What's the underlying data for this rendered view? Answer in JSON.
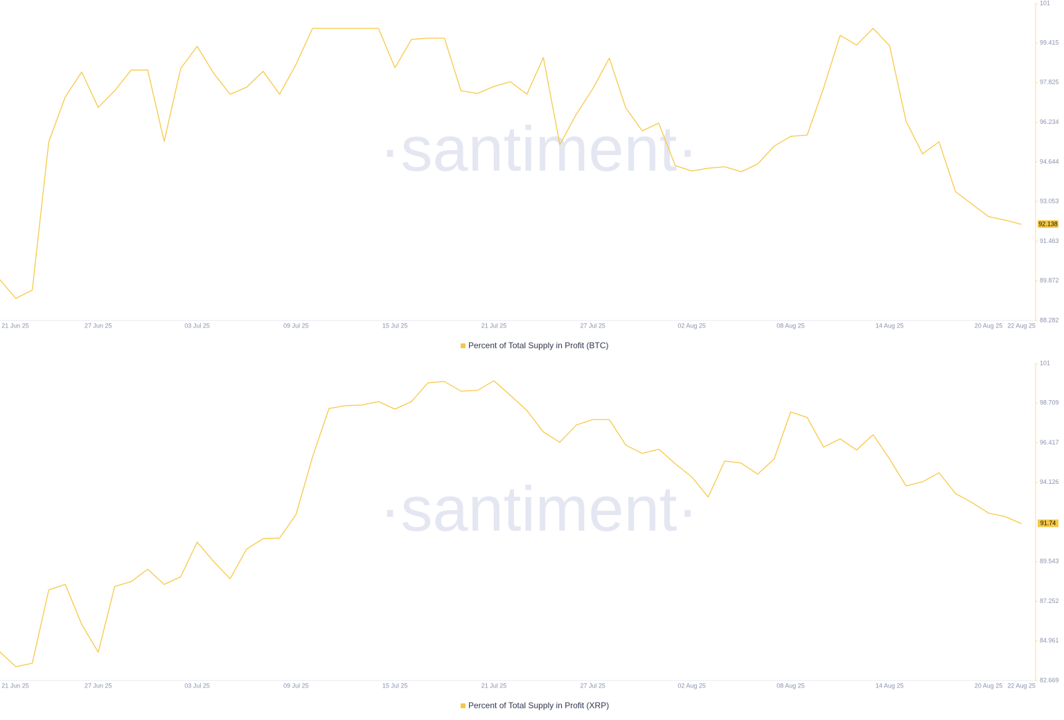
{
  "chart_data": [
    {
      "type": "line",
      "watermark": "·santiment·",
      "categories": [
        "21 Jun 25",
        null,
        null,
        null,
        null,
        null,
        "27 Jun 25",
        null,
        null,
        null,
        null,
        null,
        "03 Jul 25",
        null,
        null,
        null,
        null,
        null,
        "09 Jul 25",
        null,
        null,
        null,
        null,
        null,
        "15 Jul 25",
        null,
        null,
        null,
        null,
        null,
        "21 Jul 25",
        null,
        null,
        null,
        null,
        null,
        "27 Jul 25",
        null,
        null,
        null,
        null,
        null,
        "02 Aug 25",
        null,
        null,
        null,
        null,
        null,
        "08 Aug 25",
        null,
        null,
        null,
        null,
        null,
        "14 Aug 25",
        null,
        null,
        null,
        null,
        null,
        "20 Aug 25",
        null,
        "22 Aug 25"
      ],
      "series": [
        {
          "name": "Percent of Total Supply in Profit (BTC)",
          "color": "#f7c845",
          "values": [
            89.95,
            89.17,
            89.5,
            95.45,
            97.25,
            98.25,
            96.83,
            97.5,
            98.33,
            98.33,
            95.47,
            98.39,
            99.28,
            98.2,
            97.36,
            97.64,
            98.28,
            97.36,
            98.56,
            100.0,
            100.0,
            100.0,
            100.0,
            100.0,
            98.42,
            99.56,
            99.61,
            99.61,
            97.5,
            97.39,
            97.67,
            97.86,
            97.36,
            98.83,
            95.34,
            96.56,
            97.58,
            98.81,
            96.81,
            95.89,
            96.2,
            94.5,
            94.28,
            94.39,
            94.45,
            94.25,
            94.56,
            95.28,
            95.67,
            95.72,
            97.61,
            99.72,
            99.33,
            100.0,
            99.31,
            96.28,
            94.97,
            95.45,
            93.45,
            92.95,
            92.45,
            92.31,
            92.138
          ]
        }
      ],
      "ylim": [
        88.282,
        101
      ],
      "yticks": [
        88.282,
        89.872,
        91.463,
        93.053,
        94.644,
        96.234,
        97.825,
        99.415,
        101
      ],
      "legend": "bottom"
    },
    {
      "type": "line",
      "watermark": "·santiment·",
      "categories": [
        "21 Jun 25",
        null,
        null,
        null,
        null,
        null,
        "27 Jun 25",
        null,
        null,
        null,
        null,
        null,
        "03 Jul 25",
        null,
        null,
        null,
        null,
        null,
        "09 Jul 25",
        null,
        null,
        null,
        null,
        null,
        "15 Jul 25",
        null,
        null,
        null,
        null,
        null,
        "21 Jul 25",
        null,
        null,
        null,
        null,
        null,
        "27 Jul 25",
        null,
        null,
        null,
        null,
        null,
        "02 Aug 25",
        null,
        null,
        null,
        null,
        null,
        "08 Aug 25",
        null,
        null,
        null,
        null,
        null,
        "14 Aug 25",
        null,
        null,
        null,
        null,
        null,
        "20 Aug 25",
        null,
        "22 Aug 25"
      ],
      "series": [
        {
          "name": "Percent of Total Supply in Profit (XRP)",
          "color": "#f7c845",
          "values": [
            84.35,
            83.47,
            83.67,
            87.91,
            88.23,
            85.91,
            84.31,
            88.11,
            88.39,
            89.11,
            88.23,
            88.67,
            90.67,
            89.55,
            88.55,
            90.27,
            90.87,
            90.91,
            92.27,
            95.6,
            98.4,
            98.56,
            98.6,
            98.8,
            98.36,
            98.8,
            99.88,
            99.96,
            99.4,
            99.44,
            100.0,
            99.16,
            98.28,
            97.04,
            96.44,
            97.44,
            97.76,
            97.76,
            96.28,
            95.8,
            96.04,
            95.2,
            94.44,
            93.28,
            95.36,
            95.24,
            94.6,
            95.48,
            98.2,
            97.88,
            96.16,
            96.64,
            96.0,
            96.88,
            95.48,
            93.92,
            94.16,
            94.68,
            93.48,
            92.96,
            92.35,
            92.15,
            91.74
          ]
        }
      ],
      "ylim": [
        82.669,
        101
      ],
      "yticks": [
        82.669,
        84.961,
        87.252,
        89.543,
        94.126,
        96.417,
        98.709,
        101
      ],
      "legend": "bottom"
    }
  ]
}
